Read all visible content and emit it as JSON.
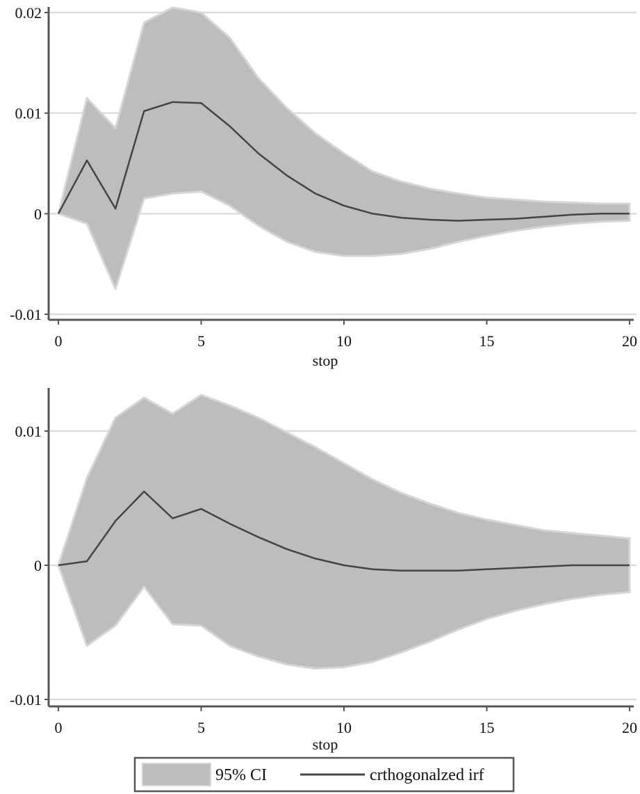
{
  "chart_data": [
    {
      "type": "line",
      "xlabel": "stop",
      "ylabel": "",
      "xlim": [
        0,
        20
      ],
      "ylim": [
        -0.01,
        0.02
      ],
      "xticks": [
        "0",
        "5",
        "10",
        "15",
        "20"
      ],
      "yticks": [
        "-0.01",
        "0",
        "0.01",
        "0.02"
      ],
      "ytick_values": [
        -0.01,
        0,
        0.01,
        0.02
      ],
      "grid": "horizontal",
      "x": [
        0,
        1,
        2,
        3,
        4,
        5,
        6,
        7,
        8,
        9,
        10,
        11,
        12,
        13,
        14,
        15,
        16,
        17,
        18,
        19,
        20
      ],
      "series": [
        {
          "role": "band",
          "lower": [
            0,
            -0.001,
            -0.0075,
            0.0015,
            0.002,
            0.0022,
            0.0008,
            -0.0012,
            -0.0028,
            -0.0038,
            -0.0042,
            -0.0042,
            -0.004,
            -0.0035,
            -0.0028,
            -0.0022,
            -0.0017,
            -0.0013,
            -0.001,
            -0.0008,
            -0.0007
          ],
          "upper": [
            0,
            0.0115,
            0.0085,
            0.019,
            0.0205,
            0.02,
            0.0175,
            0.0135,
            0.0105,
            0.008,
            0.006,
            0.0042,
            0.0032,
            0.0025,
            0.002,
            0.0016,
            0.0014,
            0.0012,
            0.0011,
            0.001,
            0.001
          ]
        },
        {
          "role": "line",
          "values": [
            0,
            0.0053,
            0.0005,
            0.0102,
            0.0111,
            0.011,
            0.0087,
            0.006,
            0.0038,
            0.002,
            0.0008,
            0,
            -0.0004,
            -0.0006,
            -0.0007,
            -0.0006,
            -0.0005,
            -0.0003,
            -0.0001,
            0,
            0
          ]
        }
      ]
    },
    {
      "type": "line",
      "xlabel": "stop",
      "ylabel": "",
      "xlim": [
        0,
        20
      ],
      "ylim": [
        -0.01,
        0.013
      ],
      "xticks": [
        "0",
        "5",
        "10",
        "15",
        "20"
      ],
      "yticks": [
        "-0.01",
        "0",
        "0.01"
      ],
      "ytick_values": [
        -0.01,
        0,
        0.01
      ],
      "grid": "horizontal",
      "x": [
        0,
        1,
        2,
        3,
        4,
        5,
        6,
        7,
        8,
        9,
        10,
        11,
        12,
        13,
        14,
        15,
        16,
        17,
        18,
        19,
        20
      ],
      "series": [
        {
          "role": "band",
          "lower": [
            0,
            -0.006,
            -0.0045,
            -0.0016,
            -0.0044,
            -0.0045,
            -0.006,
            -0.0068,
            -0.0074,
            -0.0077,
            -0.0076,
            -0.0072,
            -0.0065,
            -0.0057,
            -0.0048,
            -0.004,
            -0.0034,
            -0.0029,
            -0.0025,
            -0.0022,
            -0.002
          ],
          "upper": [
            0,
            0.0065,
            0.011,
            0.0125,
            0.0113,
            0.0127,
            0.0119,
            0.011,
            0.0099,
            0.0088,
            0.0076,
            0.0064,
            0.0054,
            0.0046,
            0.0039,
            0.0034,
            0.003,
            0.0026,
            0.0024,
            0.0022,
            0.002
          ]
        },
        {
          "role": "line",
          "values": [
            0,
            0.0003,
            0.0033,
            0.0055,
            0.0035,
            0.0042,
            0.0031,
            0.0021,
            0.0012,
            0.0005,
            0,
            -0.0003,
            -0.0004,
            -0.0004,
            -0.0004,
            -0.0003,
            -0.0002,
            -0.0001,
            0,
            0,
            0
          ]
        }
      ]
    }
  ],
  "legend": {
    "placement": "bottom",
    "entries": [
      {
        "label": "95% CI",
        "kind": "band"
      },
      {
        "label": "crthogonalzed irf",
        "kind": "line"
      }
    ]
  },
  "colors": {
    "band": "#bdbdbd",
    "band_edge": "#d6d6d6",
    "line": "#444444",
    "grid": "#dddddd",
    "axis": "#555555"
  }
}
